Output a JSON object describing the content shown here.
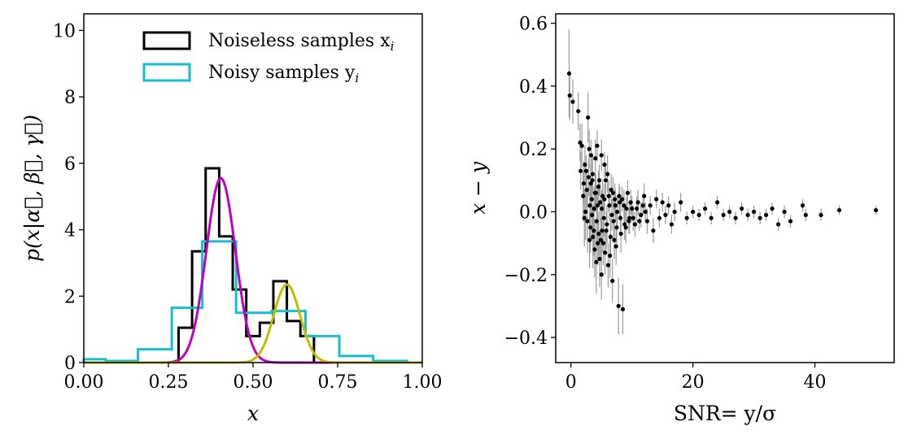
{
  "chart_data": [
    {
      "type": "histogram",
      "xlabel": "x",
      "ylabel": "p(x|α⃗, β⃗, γ⃗)",
      "xlim": [
        0.0,
        1.0
      ],
      "ylim": [
        0,
        10.5
      ],
      "xticks": [
        "0.00",
        "0.25",
        "0.50",
        "0.75",
        "1.00"
      ],
      "xtick_values": [
        0,
        0.25,
        0.5,
        0.75,
        1.0
      ],
      "yticks": [
        "0",
        "2",
        "4",
        "6",
        "8",
        "10"
      ],
      "ytick_values": [
        0,
        2,
        4,
        6,
        8,
        10
      ],
      "legend": {
        "placement": "upper-right",
        "entries": [
          {
            "label": "Noiseless samples x",
            "sub": "i",
            "color": "#000000"
          },
          {
            "label": "Noisy samples y",
            "sub": "i",
            "color": "#17becf"
          }
        ]
      },
      "series": [
        {
          "name": "Noiseless samples",
          "kind": "step-histogram",
          "color": "#000000",
          "edges": [
            0.28,
            0.32,
            0.36,
            0.4,
            0.44,
            0.48,
            0.52,
            0.56,
            0.6,
            0.64,
            0.68,
            0.72
          ],
          "heights": [
            1.05,
            3.35,
            5.85,
            3.8,
            2.2,
            0.8,
            1.2,
            2.45,
            1.25,
            0.8,
            0.0
          ]
        },
        {
          "name": "Noisy samples",
          "kind": "step-histogram",
          "color": "#17becf",
          "edges": [
            0.0,
            0.065,
            0.16,
            0.26,
            0.35,
            0.45,
            0.555,
            0.655,
            0.755,
            0.855,
            0.955,
            1.0
          ],
          "heights": [
            0.1,
            0.05,
            0.4,
            1.65,
            3.65,
            1.5,
            1.55,
            0.8,
            0.2,
            0.05,
            0.0
          ]
        },
        {
          "name": "Gaussian component 1",
          "kind": "gaussian",
          "color": "#bf00bf",
          "mu": 0.405,
          "sigma": 0.043,
          "peak": 5.55
        },
        {
          "name": "Gaussian component 2",
          "kind": "gaussian",
          "color": "#bfbf00",
          "mu": 0.6,
          "sigma": 0.039,
          "peak": 2.35
        }
      ]
    },
    {
      "type": "scatter",
      "xlabel": "SNR= y/σ",
      "ylabel": "x − y",
      "xlim": [
        -2.5,
        53
      ],
      "ylim": [
        -0.48,
        0.63
      ],
      "xticks": [
        "0",
        "20",
        "40"
      ],
      "xtick_values": [
        0,
        20,
        40
      ],
      "yticks": [
        "−0.4",
        "−0.2",
        "0.0",
        "0.2",
        "0.4",
        "0.6"
      ],
      "ytick_values": [
        -0.4,
        -0.2,
        0.0,
        0.2,
        0.4,
        0.6
      ],
      "marker_color": "#000000",
      "errorbar_color": "#999999",
      "points": [
        [
          -0.3,
          0.44,
          0.14
        ],
        [
          -0.2,
          0.37,
          0.08
        ],
        [
          0.3,
          0.35,
          0.07
        ],
        [
          1.2,
          0.32,
          0.06
        ],
        [
          1.5,
          0.22,
          0.06
        ],
        [
          1.8,
          0.21,
          0.07
        ],
        [
          2.3,
          0.15,
          0.06
        ],
        [
          2.5,
          0.13,
          0.05
        ],
        [
          2.8,
          0.3,
          0.08
        ],
        [
          3.0,
          0.2,
          0.06
        ],
        [
          3.3,
          0.18,
          0.05
        ],
        [
          3.5,
          0.1,
          0.07
        ],
        [
          4.0,
          0.17,
          0.06
        ],
        [
          4.3,
          0.21,
          0.05
        ],
        [
          5.0,
          0.18,
          0.05
        ],
        [
          5.5,
          0.15,
          0.04
        ],
        [
          6.0,
          0.12,
          0.06
        ],
        [
          2.0,
          0.05,
          0.08
        ],
        [
          2.2,
          -0.02,
          0.09
        ],
        [
          2.6,
          0.07,
          0.06
        ],
        [
          3.1,
          0.02,
          0.07
        ],
        [
          3.2,
          -0.05,
          0.08
        ],
        [
          3.4,
          0.04,
          0.06
        ],
        [
          3.6,
          -0.08,
          0.1
        ],
        [
          3.8,
          0.01,
          0.07
        ],
        [
          3.9,
          -0.12,
          0.09
        ],
        [
          4.1,
          0.06,
          0.06
        ],
        [
          4.2,
          -0.03,
          0.08
        ],
        [
          4.4,
          -0.1,
          0.07
        ],
        [
          4.5,
          0.08,
          0.05
        ],
        [
          4.7,
          -0.15,
          0.09
        ],
        [
          4.8,
          0.03,
          0.06
        ],
        [
          5.0,
          -0.2,
          0.08
        ],
        [
          5.1,
          -0.06,
          0.07
        ],
        [
          5.2,
          0.05,
          0.05
        ],
        [
          5.4,
          -0.02,
          0.06
        ],
        [
          5.6,
          -0.13,
          0.07
        ],
        [
          5.7,
          0.1,
          0.05
        ],
        [
          5.9,
          -0.04,
          0.06
        ],
        [
          6.1,
          -0.17,
          0.07
        ],
        [
          6.3,
          0.02,
          0.05
        ],
        [
          6.5,
          -0.08,
          0.06
        ],
        [
          6.6,
          0.07,
          0.05
        ],
        [
          6.8,
          -0.22,
          0.07
        ],
        [
          7.0,
          -0.03,
          0.06
        ],
        [
          7.2,
          0.04,
          0.05
        ],
        [
          7.4,
          -0.11,
          0.06
        ],
        [
          7.6,
          0.0,
          0.05
        ],
        [
          7.8,
          -0.3,
          0.09
        ],
        [
          8.0,
          0.03,
          0.05
        ],
        [
          8.2,
          -0.07,
          0.06
        ],
        [
          8.5,
          -0.31,
          0.08
        ],
        [
          8.7,
          0.02,
          0.05
        ],
        [
          9.0,
          -0.05,
          0.05
        ],
        [
          9.3,
          0.06,
          0.04
        ],
        [
          9.6,
          -0.02,
          0.05
        ],
        [
          10.0,
          0.01,
          0.04
        ],
        [
          10.5,
          -0.04,
          0.04
        ],
        [
          11.0,
          0.03,
          0.04
        ],
        [
          11.5,
          -0.01,
          0.04
        ],
        [
          12.0,
          0.05,
          0.04
        ],
        [
          12.5,
          -0.03,
          0.04
        ],
        [
          13.0,
          0.02,
          0.03
        ],
        [
          13.5,
          -0.06,
          0.04
        ],
        [
          14.0,
          0.04,
          0.03
        ],
        [
          14.5,
          -0.02,
          0.03
        ],
        [
          15.0,
          0.03,
          0.03
        ],
        [
          15.5,
          -0.01,
          0.03
        ],
        [
          16.0,
          0.02,
          0.03
        ],
        [
          16.5,
          -0.04,
          0.03
        ],
        [
          17.0,
          0.0,
          0.03
        ],
        [
          18.0,
          0.03,
          0.03
        ],
        [
          19.0,
          -0.02,
          0.02
        ],
        [
          20.0,
          0.0,
          0.02
        ],
        [
          21.0,
          -0.01,
          0.02
        ],
        [
          22.0,
          0.01,
          0.02
        ],
        [
          23.0,
          -0.02,
          0.02
        ],
        [
          24.0,
          0.03,
          0.02
        ],
        [
          25.0,
          -0.01,
          0.02
        ],
        [
          26.0,
          0.0,
          0.02
        ],
        [
          27.0,
          -0.02,
          0.02
        ],
        [
          28.0,
          0.01,
          0.02
        ],
        [
          29.0,
          -0.01,
          0.02
        ],
        [
          30.0,
          0.0,
          0.02
        ],
        [
          31.0,
          -0.02,
          0.02
        ],
        [
          32.0,
          -0.01,
          0.02
        ],
        [
          33.0,
          0.01,
          0.02
        ],
        [
          34.0,
          -0.04,
          0.02
        ],
        [
          35.0,
          0.0,
          0.02
        ],
        [
          36.0,
          -0.03,
          0.02
        ],
        [
          38.0,
          0.02,
          0.02
        ],
        [
          38.5,
          -0.01,
          0.02
        ],
        [
          41.0,
          -0.01,
          0.02
        ],
        [
          44.0,
          0.005,
          0.015
        ],
        [
          50.0,
          0.005,
          0.015
        ],
        [
          1.6,
          0.13,
          0.06
        ],
        [
          2.1,
          0.09,
          0.07
        ],
        [
          2.4,
          0.0,
          0.09
        ],
        [
          2.7,
          -0.03,
          0.1
        ],
        [
          2.9,
          0.11,
          0.06
        ],
        [
          3.05,
          -0.09,
          0.09
        ],
        [
          3.25,
          0.09,
          0.06
        ],
        [
          3.45,
          -0.01,
          0.08
        ],
        [
          3.55,
          0.12,
          0.06
        ],
        [
          3.75,
          -0.06,
          0.08
        ],
        [
          3.95,
          0.06,
          0.06
        ],
        [
          4.15,
          -0.16,
          0.1
        ],
        [
          4.35,
          0.02,
          0.06
        ],
        [
          4.55,
          -0.07,
          0.07
        ],
        [
          4.65,
          0.1,
          0.05
        ],
        [
          4.9,
          -0.09,
          0.07
        ],
        [
          5.05,
          0.01,
          0.06
        ],
        [
          5.3,
          -0.1,
          0.07
        ],
        [
          5.5,
          0.04,
          0.05
        ],
        [
          5.8,
          -0.06,
          0.06
        ],
        [
          6.2,
          0.05,
          0.05
        ],
        [
          6.4,
          -0.14,
          0.07
        ],
        [
          6.7,
          -0.01,
          0.05
        ],
        [
          6.9,
          0.06,
          0.05
        ],
        [
          7.1,
          -0.09,
          0.06
        ],
        [
          7.3,
          0.02,
          0.05
        ],
        [
          7.5,
          -0.05,
          0.05
        ],
        [
          7.9,
          0.05,
          0.04
        ],
        [
          8.1,
          -0.02,
          0.05
        ],
        [
          8.4,
          0.04,
          0.04
        ],
        [
          8.8,
          -0.04,
          0.05
        ],
        [
          9.1,
          0.01,
          0.04
        ],
        [
          9.5,
          -0.03,
          0.04
        ],
        [
          9.8,
          0.03,
          0.04
        ],
        [
          10.2,
          -0.02,
          0.04
        ],
        [
          10.8,
          0.01,
          0.04
        ],
        [
          11.2,
          -0.03,
          0.03
        ],
        [
          11.8,
          0.02,
          0.03
        ],
        [
          12.2,
          0.0,
          0.03
        ]
      ]
    }
  ]
}
